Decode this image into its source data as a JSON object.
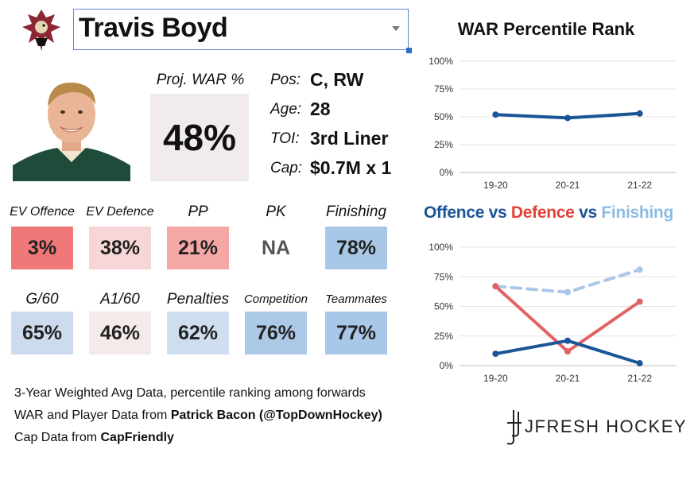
{
  "player": {
    "name": "Travis Boyd",
    "proj_war_label": "Proj. WAR %",
    "proj_war_value": "48%",
    "bio": [
      {
        "label": "Pos:",
        "value": "C, RW"
      },
      {
        "label": "Age:",
        "value": "28"
      },
      {
        "label": "TOI:",
        "value": "3rd Liner"
      },
      {
        "label": "Cap:",
        "value": "$0.7M x 1"
      }
    ]
  },
  "stats_row1": [
    {
      "label": "EV Offence",
      "value": "3%",
      "color": "#f07878"
    },
    {
      "label": "EV Defence",
      "value": "38%",
      "color": "#f6d6d6"
    },
    {
      "label": "PP",
      "value": "21%",
      "color": "#f4a7a5"
    },
    {
      "label": "PK",
      "value": "NA",
      "color": "#ffffff"
    },
    {
      "label": "Finishing",
      "value": "78%",
      "color": "#a9c8e8"
    }
  ],
  "stats_row2": [
    {
      "label": "G/60",
      "value": "65%",
      "color": "#ccdcee"
    },
    {
      "label": "A1/60",
      "value": "46%",
      "color": "#f4eaea"
    },
    {
      "label": "Penalties",
      "value": "62%",
      "color": "#cfdeef"
    },
    {
      "label": "Competition",
      "value": "76%",
      "color": "#adc9e8"
    },
    {
      "label": "Teammates",
      "value": "77%",
      "color": "#a9c7e8"
    }
  ],
  "footer": {
    "line1": "3-Year Weighted Avg Data, percentile ranking among forwards",
    "line2_prefix": "WAR and Player Data from ",
    "line2_bold": "Patrick Bacon (@TopDownHockey)",
    "line3_prefix": "Cap Data from ",
    "line3_bold": "CapFriendly",
    "brand": "JFRESH HOCKEY"
  },
  "chart_data": [
    {
      "type": "line",
      "title": "WAR Percentile Rank",
      "categories": [
        "19-20",
        "20-21",
        "21-22"
      ],
      "y_ticks": [
        "0%",
        "25%",
        "50%",
        "75%",
        "100%"
      ],
      "ylim": [
        0,
        100
      ],
      "grid": true,
      "series": [
        {
          "values": [
            52,
            49,
            53
          ],
          "color": "#1c5597",
          "dashed": false
        }
      ]
    },
    {
      "type": "line",
      "title_parts": [
        "Offence",
        " vs ",
        "Defence",
        " vs ",
        "Finishing"
      ],
      "categories": [
        "19-20",
        "20-21",
        "21-22"
      ],
      "y_ticks": [
        "0%",
        "25%",
        "50%",
        "75%",
        "100%"
      ],
      "ylim": [
        0,
        100
      ],
      "grid": true,
      "series": [
        {
          "values": [
            10,
            21,
            2
          ],
          "color": "#1c5597",
          "dashed": false
        },
        {
          "values": [
            67,
            12,
            54
          ],
          "color": "#e06464",
          "dashed": false
        },
        {
          "values": [
            67,
            62,
            81
          ],
          "color": "#a9c8e8",
          "dashed": true
        }
      ]
    }
  ]
}
